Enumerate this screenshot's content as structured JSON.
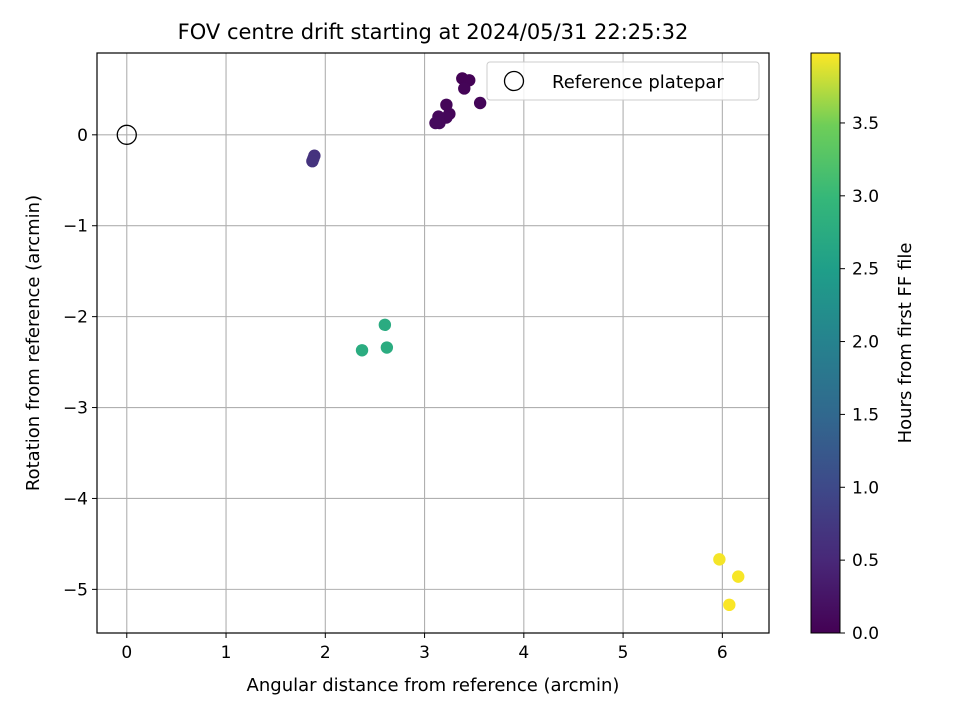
{
  "chart_data": {
    "type": "scatter",
    "title": "FOV centre drift starting at 2024/05/31 22:25:32",
    "xlabel": "Angular distance from reference (arcmin)",
    "ylabel": "Rotation from reference (arcmin)",
    "xlim": [
      -0.3,
      6.47
    ],
    "ylim": [
      -5.48,
      0.9
    ],
    "xticks": [
      0,
      1,
      2,
      3,
      4,
      5,
      6
    ],
    "yticks": [
      0,
      -1,
      -2,
      -3,
      -4,
      -5
    ],
    "xtick_labels": [
      "0",
      "1",
      "2",
      "3",
      "4",
      "5",
      "6"
    ],
    "ytick_labels": [
      "0",
      "−1",
      "−2",
      "−3",
      "−4",
      "−5"
    ],
    "grid": true,
    "colormap": "viridis",
    "colorbar": {
      "label": "Hours from first FF file",
      "range": [
        0,
        3.98
      ],
      "ticks": [
        0.0,
        0.5,
        1.0,
        1.5,
        2.0,
        2.5,
        3.0,
        3.5
      ],
      "tick_labels": [
        "0.0",
        "0.5",
        "1.0",
        "1.5",
        "2.0",
        "2.5",
        "3.0",
        "3.5"
      ]
    },
    "reference": {
      "name": "Reference platepar",
      "x": 0,
      "y": 0
    },
    "legend": {
      "position": "top-right",
      "entries": [
        "Reference platepar"
      ]
    },
    "points": [
      {
        "x": 3.38,
        "y": 0.62,
        "hours": 0.02
      },
      {
        "x": 3.45,
        "y": 0.6,
        "hours": 0.03
      },
      {
        "x": 3.4,
        "y": 0.51,
        "hours": 0.04
      },
      {
        "x": 3.56,
        "y": 0.35,
        "hours": 0.05
      },
      {
        "x": 3.22,
        "y": 0.33,
        "hours": 0.06
      },
      {
        "x": 3.25,
        "y": 0.23,
        "hours": 0.07
      },
      {
        "x": 3.22,
        "y": 0.19,
        "hours": 0.08
      },
      {
        "x": 3.14,
        "y": 0.2,
        "hours": 0.09
      },
      {
        "x": 3.15,
        "y": 0.13,
        "hours": 0.1
      },
      {
        "x": 3.11,
        "y": 0.13,
        "hours": 0.11
      },
      {
        "x": 1.89,
        "y": -0.23,
        "hours": 0.65
      },
      {
        "x": 1.88,
        "y": -0.26,
        "hours": 0.66
      },
      {
        "x": 1.87,
        "y": -0.29,
        "hours": 0.67
      },
      {
        "x": 2.6,
        "y": -2.09,
        "hours": 2.75
      },
      {
        "x": 2.37,
        "y": -2.37,
        "hours": 2.76
      },
      {
        "x": 2.62,
        "y": -2.34,
        "hours": 2.77
      },
      {
        "x": 5.97,
        "y": -4.67,
        "hours": 3.95
      },
      {
        "x": 6.16,
        "y": -4.86,
        "hours": 3.96
      },
      {
        "x": 6.07,
        "y": -5.17,
        "hours": 3.97
      }
    ]
  }
}
